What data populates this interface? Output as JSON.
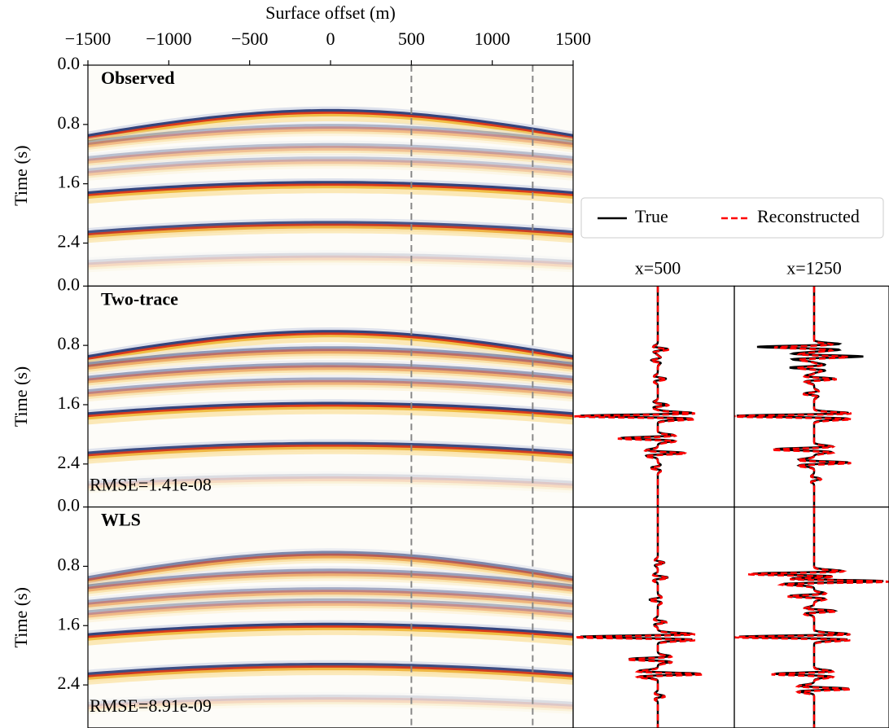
{
  "chart_data": [
    {
      "type": "image",
      "title": "Observed",
      "xlabel": "Surface offset (m)",
      "ylabel": "Time (s)",
      "xlim": [
        -1500,
        1500
      ],
      "xticks": [
        {
          "value": -1500,
          "label": "−1500"
        },
        {
          "value": -1000,
          "label": "−1000"
        },
        {
          "value": -500,
          "label": "−500"
        },
        0,
        500,
        1000,
        1500
      ],
      "ylim": [
        0,
        2.98
      ],
      "yticks": [
        {
          "value": 0,
          "label": "0.0"
        },
        0.8,
        1.6,
        2.4
      ],
      "vlines": [
        500,
        1250
      ],
      "vline_color": "#888888"
    },
    {
      "type": "image",
      "title": "Two-trace",
      "annotation": "RMSE=1.41e-08",
      "ylabel": "Time (s)",
      "xlim": [
        -1500,
        1500
      ],
      "ylim": [
        0,
        2.98
      ],
      "yticks": [
        {
          "value": 0,
          "label": "0.0"
        },
        0.8,
        1.6,
        2.4
      ],
      "vlines": [
        500,
        1250
      ],
      "vline_color": "#888888"
    },
    {
      "type": "image",
      "title": "WLS",
      "annotation": "RMSE=8.91e-09",
      "ylabel": "Time (s)",
      "xlim": [
        -1500,
        1500
      ],
      "ylim": [
        0,
        2.98
      ],
      "yticks": [
        {
          "value": 0,
          "label": "0.0"
        },
        0.8,
        1.6,
        2.4
      ],
      "vlines": [
        500,
        1250
      ],
      "vline_color": "#888888"
    },
    {
      "type": "trace",
      "titles": [
        "x=500",
        "x=1250"
      ],
      "series": [
        {
          "name": "True",
          "color": "#000000"
        },
        {
          "name": "Reconstructed",
          "color": "#ff0000"
        }
      ],
      "legend": "upper"
    }
  ]
}
